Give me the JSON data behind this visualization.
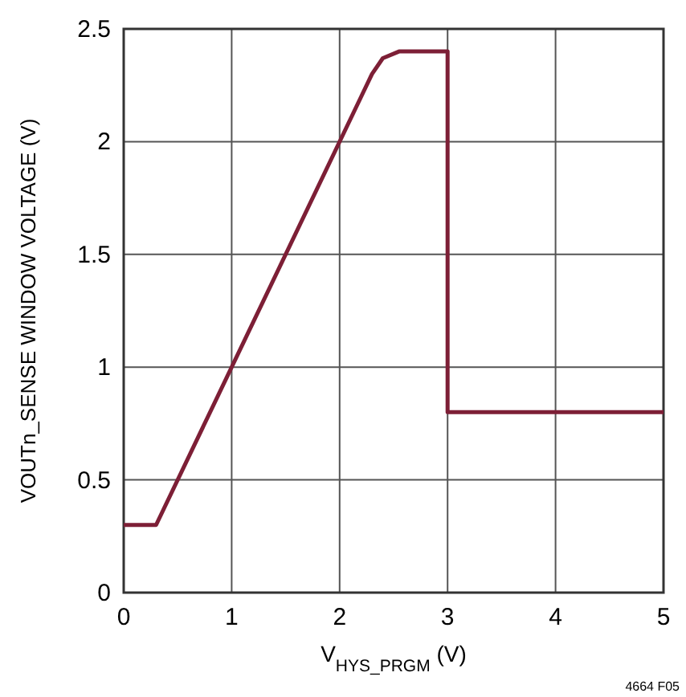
{
  "chart_data": {
    "type": "line",
    "xlabel": "V$_{HYS_PRGM}$ (V)",
    "ylabel": "VOUTn_SENSE WINDOW VOLTAGE (V)",
    "annotations": [
      "4664 F05"
    ],
    "series": [
      {
        "color": "#7d1f36",
        "x": [
          0,
          0.3,
          2.2,
          2.3,
          2.4,
          2.55,
          3,
          3,
          5
        ],
        "values": [
          0.3,
          0.3,
          2.2,
          2.3,
          2.37,
          2.4,
          2.4,
          0.8,
          0.8
        ]
      }
    ],
    "xlim": [
      0,
      5
    ],
    "xticks": [
      0,
      1,
      2,
      3,
      4,
      5
    ],
    "ylim": [
      0,
      2.5
    ],
    "yticks": [
      0,
      0.5,
      1,
      1.5,
      2,
      2.5
    ],
    "grid": true,
    "marker": "none",
    "line_style": "solid"
  }
}
